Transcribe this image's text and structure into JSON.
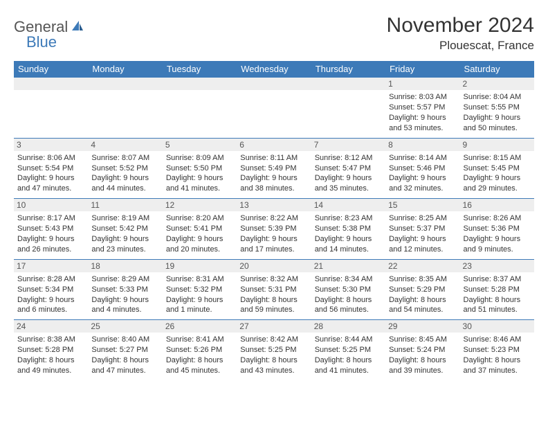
{
  "logo": {
    "word1": "General",
    "word2": "Blue"
  },
  "title": "November 2024",
  "location": "Plouescat, France",
  "colors": {
    "header_bg": "#3d7ab8",
    "header_text": "#ffffff",
    "daynum_bg": "#eeeeee",
    "row_border": "#3d7ab8",
    "body_text": "#333333"
  },
  "weekdays": [
    "Sunday",
    "Monday",
    "Tuesday",
    "Wednesday",
    "Thursday",
    "Friday",
    "Saturday"
  ],
  "weeks": [
    [
      null,
      null,
      null,
      null,
      null,
      {
        "n": "1",
        "sunrise": "8:03 AM",
        "sunset": "5:57 PM",
        "daylight": "9 hours and 53 minutes."
      },
      {
        "n": "2",
        "sunrise": "8:04 AM",
        "sunset": "5:55 PM",
        "daylight": "9 hours and 50 minutes."
      }
    ],
    [
      {
        "n": "3",
        "sunrise": "8:06 AM",
        "sunset": "5:54 PM",
        "daylight": "9 hours and 47 minutes."
      },
      {
        "n": "4",
        "sunrise": "8:07 AM",
        "sunset": "5:52 PM",
        "daylight": "9 hours and 44 minutes."
      },
      {
        "n": "5",
        "sunrise": "8:09 AM",
        "sunset": "5:50 PM",
        "daylight": "9 hours and 41 minutes."
      },
      {
        "n": "6",
        "sunrise": "8:11 AM",
        "sunset": "5:49 PM",
        "daylight": "9 hours and 38 minutes."
      },
      {
        "n": "7",
        "sunrise": "8:12 AM",
        "sunset": "5:47 PM",
        "daylight": "9 hours and 35 minutes."
      },
      {
        "n": "8",
        "sunrise": "8:14 AM",
        "sunset": "5:46 PM",
        "daylight": "9 hours and 32 minutes."
      },
      {
        "n": "9",
        "sunrise": "8:15 AM",
        "sunset": "5:45 PM",
        "daylight": "9 hours and 29 minutes."
      }
    ],
    [
      {
        "n": "10",
        "sunrise": "8:17 AM",
        "sunset": "5:43 PM",
        "daylight": "9 hours and 26 minutes."
      },
      {
        "n": "11",
        "sunrise": "8:19 AM",
        "sunset": "5:42 PM",
        "daylight": "9 hours and 23 minutes."
      },
      {
        "n": "12",
        "sunrise": "8:20 AM",
        "sunset": "5:41 PM",
        "daylight": "9 hours and 20 minutes."
      },
      {
        "n": "13",
        "sunrise": "8:22 AM",
        "sunset": "5:39 PM",
        "daylight": "9 hours and 17 minutes."
      },
      {
        "n": "14",
        "sunrise": "8:23 AM",
        "sunset": "5:38 PM",
        "daylight": "9 hours and 14 minutes."
      },
      {
        "n": "15",
        "sunrise": "8:25 AM",
        "sunset": "5:37 PM",
        "daylight": "9 hours and 12 minutes."
      },
      {
        "n": "16",
        "sunrise": "8:26 AM",
        "sunset": "5:36 PM",
        "daylight": "9 hours and 9 minutes."
      }
    ],
    [
      {
        "n": "17",
        "sunrise": "8:28 AM",
        "sunset": "5:34 PM",
        "daylight": "9 hours and 6 minutes."
      },
      {
        "n": "18",
        "sunrise": "8:29 AM",
        "sunset": "5:33 PM",
        "daylight": "9 hours and 4 minutes."
      },
      {
        "n": "19",
        "sunrise": "8:31 AM",
        "sunset": "5:32 PM",
        "daylight": "9 hours and 1 minute."
      },
      {
        "n": "20",
        "sunrise": "8:32 AM",
        "sunset": "5:31 PM",
        "daylight": "8 hours and 59 minutes."
      },
      {
        "n": "21",
        "sunrise": "8:34 AM",
        "sunset": "5:30 PM",
        "daylight": "8 hours and 56 minutes."
      },
      {
        "n": "22",
        "sunrise": "8:35 AM",
        "sunset": "5:29 PM",
        "daylight": "8 hours and 54 minutes."
      },
      {
        "n": "23",
        "sunrise": "8:37 AM",
        "sunset": "5:28 PM",
        "daylight": "8 hours and 51 minutes."
      }
    ],
    [
      {
        "n": "24",
        "sunrise": "8:38 AM",
        "sunset": "5:28 PM",
        "daylight": "8 hours and 49 minutes."
      },
      {
        "n": "25",
        "sunrise": "8:40 AM",
        "sunset": "5:27 PM",
        "daylight": "8 hours and 47 minutes."
      },
      {
        "n": "26",
        "sunrise": "8:41 AM",
        "sunset": "5:26 PM",
        "daylight": "8 hours and 45 minutes."
      },
      {
        "n": "27",
        "sunrise": "8:42 AM",
        "sunset": "5:25 PM",
        "daylight": "8 hours and 43 minutes."
      },
      {
        "n": "28",
        "sunrise": "8:44 AM",
        "sunset": "5:25 PM",
        "daylight": "8 hours and 41 minutes."
      },
      {
        "n": "29",
        "sunrise": "8:45 AM",
        "sunset": "5:24 PM",
        "daylight": "8 hours and 39 minutes."
      },
      {
        "n": "30",
        "sunrise": "8:46 AM",
        "sunset": "5:23 PM",
        "daylight": "8 hours and 37 minutes."
      }
    ]
  ],
  "labels": {
    "sunrise": "Sunrise: ",
    "sunset": "Sunset: ",
    "daylight": "Daylight: "
  }
}
